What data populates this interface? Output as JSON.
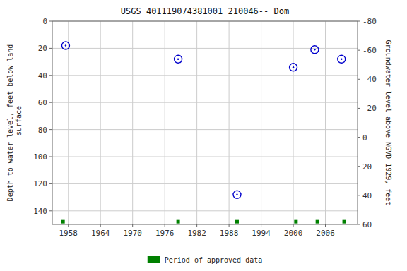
{
  "chart_data": {
    "type": "scatter",
    "title": "USGS 401119074381001 210046-- Dom",
    "ylabel": "Depth to water level, feet below land\n surface",
    "y2label": "Groundwater level above NGVD 1929, feet",
    "xlim": [
      1955,
      2012
    ],
    "xticks": [
      1958,
      1964,
      1970,
      1976,
      1982,
      1988,
      1994,
      2000,
      2006
    ],
    "ylim": [
      150,
      0
    ],
    "yticks": [
      0,
      20,
      40,
      60,
      80,
      100,
      120,
      140
    ],
    "y2lim": [
      60,
      -80
    ],
    "y2ticks": [
      60,
      40,
      20,
      0,
      -20,
      -40,
      -60,
      -80
    ],
    "grid": true,
    "legend": "bottom",
    "series": [
      {
        "color": "#0000cc",
        "marker": "circle",
        "x": [
          1957.5,
          1978.5,
          1989.5,
          2000.0,
          2004.0,
          2009.0
        ],
        "values": [
          18.0,
          28.0,
          128.0,
          34.0,
          21.0,
          28.0
        ]
      },
      {
        "name": "Period of approved data",
        "color": "#008000",
        "marker": "square",
        "x": [
          1957.0,
          1978.5,
          1989.5,
          2000.5,
          2004.5,
          2009.5
        ],
        "values": [
          148,
          148,
          148,
          148,
          148,
          148
        ]
      }
    ]
  }
}
